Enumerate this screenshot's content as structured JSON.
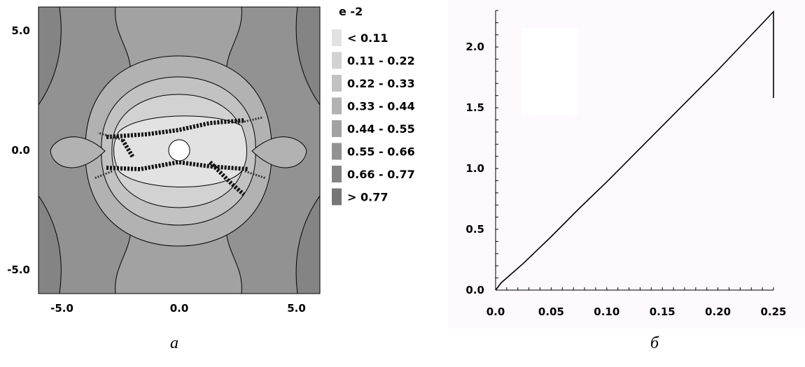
{
  "chart_data": [
    {
      "type": "heatmap",
      "caption": "а",
      "x_ticks": [
        "-5.0",
        "0.0",
        "5.0"
      ],
      "y_ticks": [
        "5.0",
        "0.0",
        "-5.0"
      ],
      "xlim": [
        -6,
        6
      ],
      "ylim": [
        -6,
        6
      ],
      "hole": {
        "x": 0,
        "y": 0,
        "r": 0.45
      },
      "legend": {
        "title": "e -2",
        "levels": [
          {
            "label": "< 0.11",
            "color": "#e2e2e2"
          },
          {
            "label": "0.11 - 0.22",
            "color": "#d2d2d2"
          },
          {
            "label": "0.22 - 0.33",
            "color": "#c2c2c2"
          },
          {
            "label": "0.33 - 0.44",
            "color": "#b2b2b2"
          },
          {
            "label": "0.44 - 0.55",
            "color": "#a2a2a2"
          },
          {
            "label": "0.55 - 0.66",
            "color": "#929292"
          },
          {
            "label": "0.66 - 0.77",
            "color": "#848484"
          },
          {
            "label": "> 0.77",
            "color": "#767676"
          }
        ]
      }
    },
    {
      "type": "line",
      "caption": "б",
      "x_ticks": [
        "0.0",
        "0.05",
        "0.10",
        "0.15",
        "0.20",
        "0.25"
      ],
      "y_ticks": [
        "0.0",
        "0.5",
        "1.0",
        "1.5",
        "2.0"
      ],
      "xlim": [
        0,
        0.25
      ],
      "ylim": [
        0,
        2.3
      ],
      "series": [
        {
          "color": "#000000",
          "x": [
            0,
            0.005,
            0.01,
            0.025,
            0.05,
            0.075,
            0.1,
            0.125,
            0.15,
            0.175,
            0.2,
            0.225,
            0.25,
            0.25
          ],
          "y": [
            0,
            0.06,
            0.1,
            0.22,
            0.44,
            0.67,
            0.89,
            1.12,
            1.35,
            1.58,
            1.81,
            2.05,
            2.29,
            1.58
          ]
        }
      ]
    }
  ]
}
